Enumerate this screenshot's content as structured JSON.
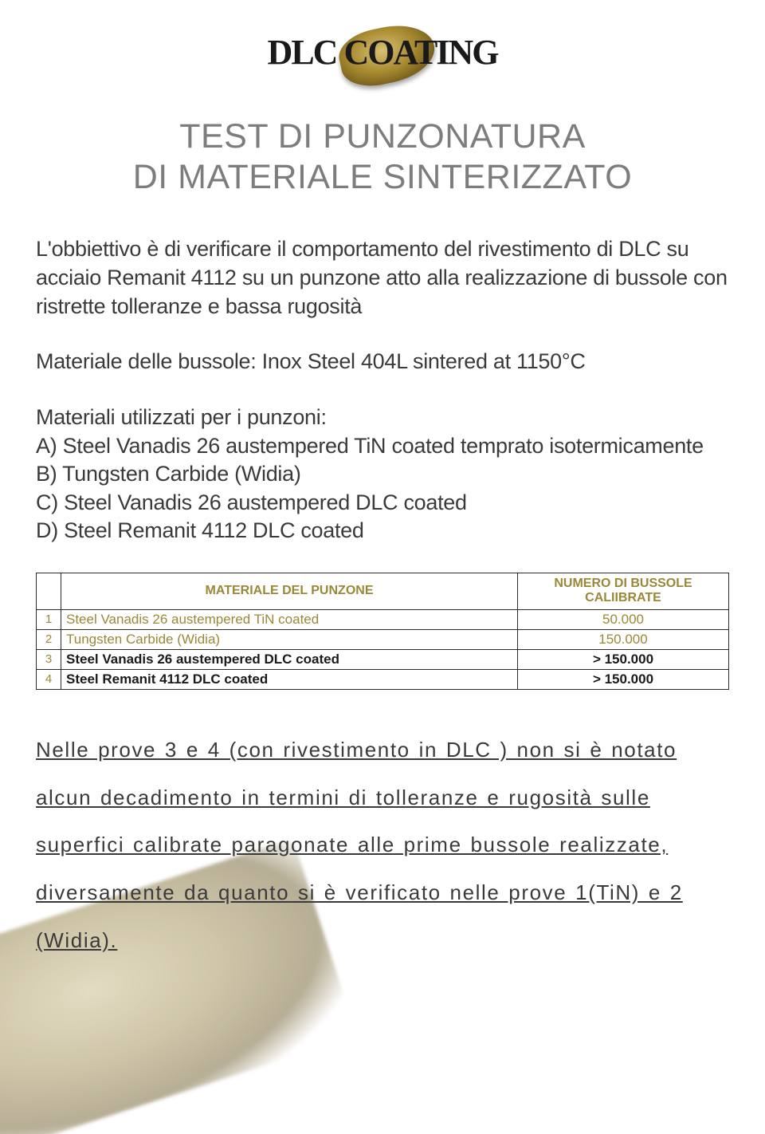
{
  "logo": {
    "text": "DLC COATING"
  },
  "title": {
    "line1": "TEST DI PUNZONATURA",
    "line2": "DI MATERIALE SINTERIZZATO"
  },
  "intro": {
    "p1": "L'obbiettivo è di verificare il comportamento del rivestimento di  DLC  su acciaio Remanit 4112 su un punzone atto alla realizzazione di bussole con ristrette tolleranze e bassa rugosità",
    "p2": "Materiale delle bussole: Inox Steel 404L sintered at 1150°C",
    "p3_header": "Materiali utilizzati per i punzoni:",
    "items": {
      "a": "A) Steel Vanadis 26 austempered TiN coated temprato isotermicamente",
      "b": "B) Tungsten Carbide (Widia)",
      "c": "C) Steel Vanadis 26 austempered DLC coated",
      "d": "D) Steel Remanit 4112 DLC coated"
    }
  },
  "table": {
    "header_color": "#9a8838",
    "border_color": "#2a2a2a",
    "columns": {
      "material": "MATERIALE DEL PUNZONE",
      "count": "NUMERO DI BUSSOLE CALIIBRATE"
    },
    "rows": [
      {
        "n": "1",
        "material": "Steel Vanadis 26 austempered TiN coated",
        "count": "50.000",
        "bold": false
      },
      {
        "n": "2",
        "material": "Tungsten Carbide (Widia)",
        "count": "150.000",
        "bold": false
      },
      {
        "n": "3",
        "material": "Steel Vanadis 26 austempered DLC coated",
        "count": "> 150.000",
        "bold": true
      },
      {
        "n": "4",
        "material": "Steel Remanit 4112 DLC coated",
        "count": "> 150.000",
        "bold": true
      }
    ]
  },
  "conclusion": "Nelle prove 3 e 4 (con rivestimento in DLC )  non si è notato alcun decadimento in termini di  tolleranze e rugosità sulle superfici calibrate paragonate alle prime bussole realizzate, diversamente da quanto si è verificato nelle prove 1(TiN) e 2 (Widia).",
  "colors": {
    "background": "#ffffff",
    "body_text": "#3a3a3a",
    "title_text": "#7d7d7d",
    "accent": "#9a8838",
    "logo_text": "#1a1a1a"
  },
  "typography": {
    "title_fontsize": 43,
    "body_fontsize": 27,
    "table_header_fontsize": 16,
    "table_cell_fontsize": 17,
    "conclusion_fontsize": 26
  }
}
